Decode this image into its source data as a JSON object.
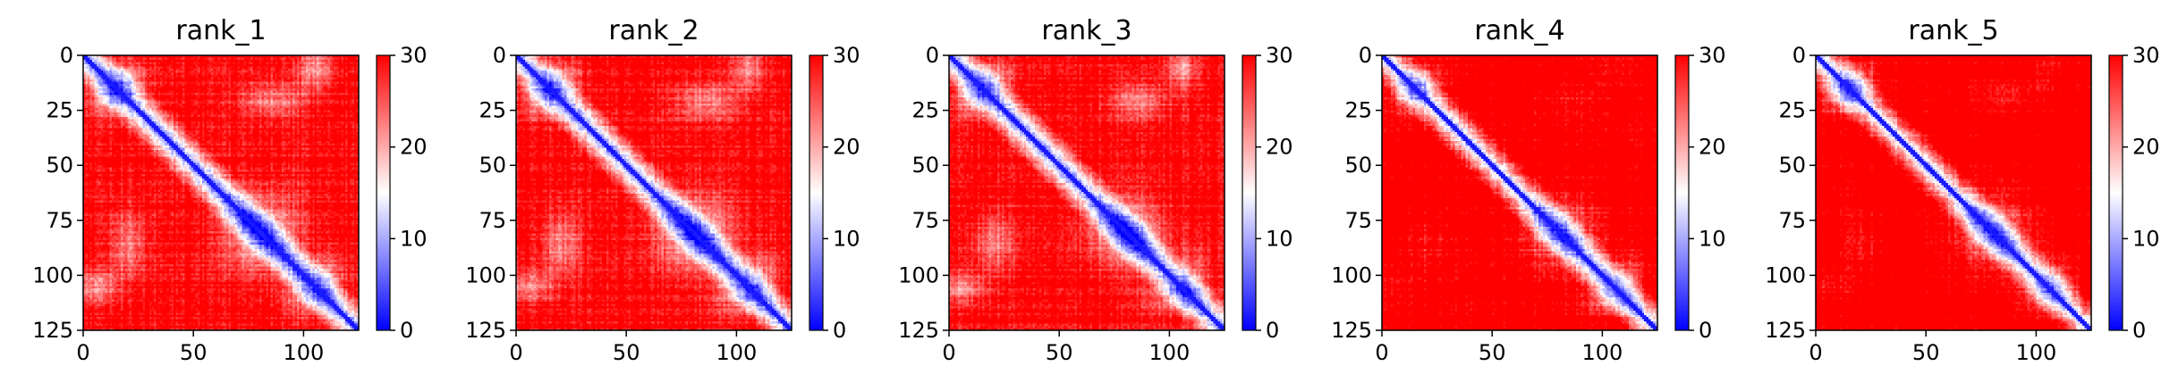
{
  "figure": {
    "panels": [
      {
        "title": "rank_1"
      },
      {
        "title": "rank_2"
      },
      {
        "title": "rank_3"
      },
      {
        "title": "rank_4"
      },
      {
        "title": "rank_5"
      }
    ]
  },
  "chart_data": {
    "type": "heatmap",
    "grid_size": 125,
    "panels": [
      "rank_1",
      "rank_2",
      "rank_3",
      "rank_4",
      "rank_5"
    ],
    "x_ticks": [
      0,
      50,
      100
    ],
    "y_ticks": [
      0,
      25,
      50,
      75,
      100,
      125
    ],
    "xlim": [
      0,
      125
    ],
    "ylim": [
      125,
      0
    ],
    "colorbar": {
      "ticks": [
        0,
        10,
        20,
        30
      ],
      "range": [
        0,
        30
      ],
      "colormap": "bwr",
      "colors": {
        "low": "#0000ff",
        "mid": "#ffffff",
        "high": "#ff0000"
      }
    },
    "grid": false,
    "description_values": "distance matrices; near-zero along main diagonal (blue), ~30 far from diagonal (red), with blue/white off-diagonal contact blocks"
  }
}
